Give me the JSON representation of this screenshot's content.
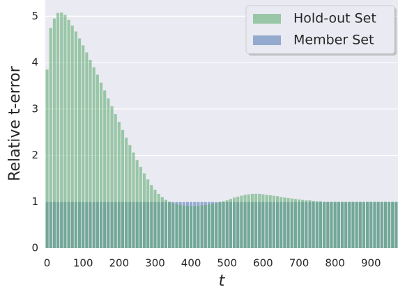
{
  "chart_data": {
    "type": "bar",
    "x_label": "t",
    "y_label": "Relative t-error",
    "x": [
      0,
      10,
      20,
      30,
      40,
      50,
      60,
      70,
      80,
      90,
      100,
      110,
      120,
      130,
      140,
      150,
      160,
      170,
      180,
      190,
      200,
      210,
      220,
      230,
      240,
      250,
      260,
      270,
      280,
      290,
      300,
      310,
      320,
      330,
      340,
      350,
      360,
      370,
      380,
      390,
      400,
      410,
      420,
      430,
      440,
      450,
      460,
      470,
      480,
      490,
      500,
      510,
      520,
      530,
      540,
      550,
      560,
      570,
      580,
      590,
      600,
      610,
      620,
      630,
      640,
      650,
      660,
      670,
      680,
      690,
      700,
      710,
      720,
      730,
      740,
      750,
      760,
      770,
      780,
      790,
      800,
      810,
      820,
      830,
      840,
      850,
      860,
      870,
      880,
      890,
      900,
      910,
      920,
      930,
      940,
      950,
      960,
      970
    ],
    "series": [
      {
        "name": "Member Set",
        "color": "#4c72b0",
        "values": [
          1,
          1,
          1,
          1,
          1,
          1,
          1,
          1,
          1,
          1,
          1,
          1,
          1,
          1,
          1,
          1,
          1,
          1,
          1,
          1,
          1,
          1,
          1,
          1,
          1,
          1,
          1,
          1,
          1,
          1,
          1,
          1,
          1,
          1,
          1,
          1,
          1,
          1,
          1,
          1,
          1,
          1,
          1,
          1,
          1,
          1,
          1,
          1,
          1,
          1,
          1,
          1,
          1,
          1,
          1,
          1,
          1,
          1,
          1,
          1,
          1,
          1,
          1,
          1,
          1,
          1,
          1,
          1,
          1,
          1,
          1,
          1,
          1,
          1,
          1,
          1,
          1,
          1,
          1,
          1,
          1,
          1,
          1,
          1,
          1,
          1,
          1,
          1,
          1,
          1,
          1,
          1,
          1,
          1,
          1,
          1,
          1,
          1
        ]
      },
      {
        "name": "Hold-out Set",
        "color": "#55a868",
        "values": [
          3.85,
          4.75,
          4.95,
          5.07,
          5.08,
          5.03,
          4.92,
          4.8,
          4.67,
          4.52,
          4.37,
          4.22,
          4.06,
          3.9,
          3.74,
          3.57,
          3.4,
          3.23,
          3.06,
          2.89,
          2.72,
          2.55,
          2.38,
          2.22,
          2.06,
          1.9,
          1.75,
          1.61,
          1.48,
          1.36,
          1.26,
          1.17,
          1.1,
          1.04,
          1.0,
          0.97,
          0.95,
          0.93,
          0.92,
          0.91,
          0.91,
          0.91,
          0.91,
          0.92,
          0.93,
          0.94,
          0.96,
          0.97,
          0.99,
          1.01,
          1.03,
          1.06,
          1.09,
          1.11,
          1.13,
          1.15,
          1.16,
          1.17,
          1.17,
          1.17,
          1.16,
          1.15,
          1.14,
          1.13,
          1.12,
          1.1,
          1.09,
          1.08,
          1.07,
          1.06,
          1.05,
          1.04,
          1.03,
          1.03,
          1.02,
          1.01,
          1.01,
          1.0,
          1,
          1,
          1,
          1,
          1,
          1,
          1,
          1,
          1,
          1,
          1,
          1,
          1,
          1,
          1,
          1,
          1,
          1,
          1,
          1
        ]
      }
    ],
    "legend_order": [
      1,
      0
    ],
    "legend": "upper right",
    "xlim": [
      -5,
      975
    ],
    "ylim": [
      0,
      5.35
    ],
    "xticks": [
      0,
      100,
      200,
      300,
      400,
      500,
      600,
      700,
      800,
      900
    ],
    "yticks": [
      0,
      1,
      2,
      3,
      4,
      5
    ],
    "grid": true
  }
}
